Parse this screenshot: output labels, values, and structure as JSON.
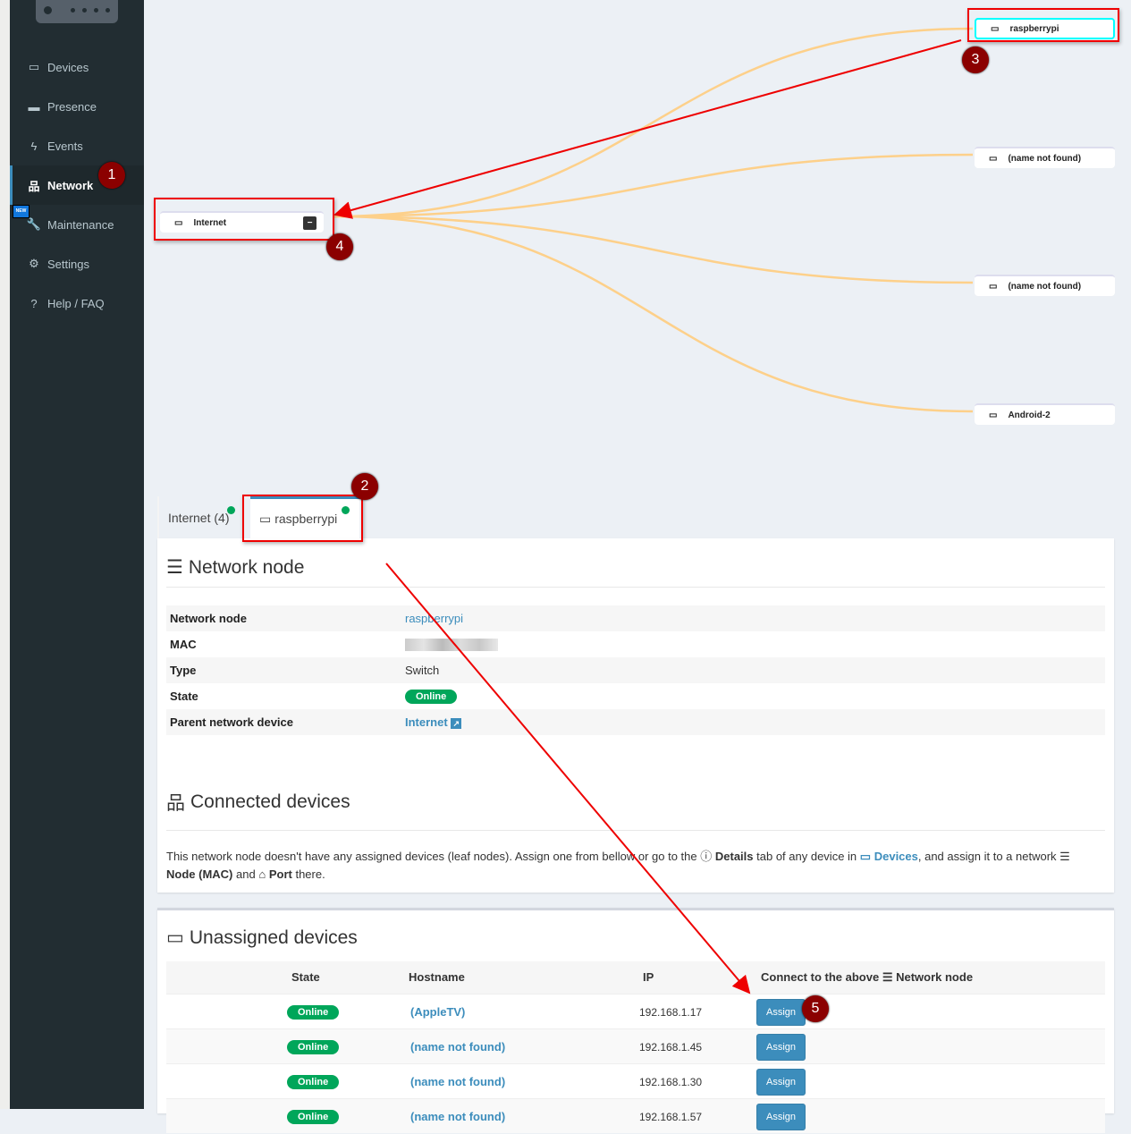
{
  "sidebar": {
    "items": [
      {
        "label": "Devices",
        "icon": "laptop-icon"
      },
      {
        "label": "Presence",
        "icon": "calendar-icon"
      },
      {
        "label": "Events",
        "icon": "bolt-icon"
      },
      {
        "label": "Network",
        "icon": "sitemap-icon",
        "active": true
      },
      {
        "label": "Maintenance",
        "icon": "wrench-icon",
        "badge": "NEW"
      },
      {
        "label": "Settings",
        "icon": "gear-icon"
      },
      {
        "label": "Help / FAQ",
        "icon": "question-icon"
      }
    ]
  },
  "tree": {
    "root": "Internet",
    "collapse": "−",
    "children": [
      "raspberrypi",
      "(name not found)",
      "(name not found)",
      "Android-2"
    ]
  },
  "annotations": [
    "1",
    "2",
    "3",
    "4",
    "5"
  ],
  "tabs": [
    {
      "label": "Internet (4)"
    },
    {
      "label": "raspberrypi",
      "active": true
    }
  ],
  "node": {
    "title": "Network node",
    "rows": [
      {
        "key": "Network node",
        "value": "raspberrypi"
      },
      {
        "key": "MAC",
        "value": ""
      },
      {
        "key": "Type",
        "value": "Switch"
      },
      {
        "key": "State",
        "value": "Online"
      },
      {
        "key": "Parent network device",
        "value": "Internet"
      }
    ]
  },
  "connected": {
    "title": "Connected devices",
    "text1": "This network node doesn't have any assigned devices (leaf nodes). Assign one from bellow or go to the",
    "details": "Details",
    "text2": "tab of any device in",
    "devices": "Devices",
    "text3": ", and assign it to a network",
    "node_mac": "Node (MAC)",
    "and": "and",
    "port": "Port",
    "there": "there."
  },
  "unassigned": {
    "title": "Unassigned devices",
    "headers": {
      "state": "State",
      "hostname": "Hostname",
      "ip": "IP",
      "connect_pre": "Connect to the above",
      "connect_post": "Network node"
    },
    "rows": [
      {
        "state": "Online",
        "hostname": "(AppleTV)",
        "ip": "192.168.1.17",
        "action": "Assign"
      },
      {
        "state": "Online",
        "hostname": "(name not found)",
        "ip": "192.168.1.45",
        "action": "Assign"
      },
      {
        "state": "Online",
        "hostname": "(name not found)",
        "ip": "192.168.1.30",
        "action": "Assign"
      },
      {
        "state": "Online",
        "hostname": "(name not found)",
        "ip": "192.168.1.57",
        "action": "Assign"
      }
    ]
  },
  "colors": {
    "sidebar": "#222d32",
    "accent": "#3c8dbc",
    "online": "#00a65a",
    "link_curve": "#fdd08a",
    "annotation": "#e00000"
  }
}
